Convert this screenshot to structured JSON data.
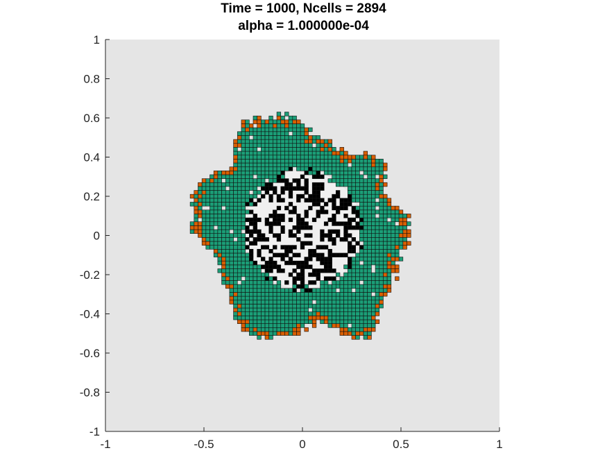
{
  "chart_data": {
    "type": "scatter",
    "title_lines": [
      "Time = 1000, Ncells = 2894",
      "alpha = 1.000000e-04"
    ],
    "xlabel": "",
    "ylabel": "",
    "xlim": [
      -1,
      1
    ],
    "ylim": [
      -1,
      1
    ],
    "xticks": [
      -1,
      -0.5,
      0,
      0.5,
      1
    ],
    "xtick_labels": [
      "-1",
      "-0.5",
      "0",
      "0.5",
      "1"
    ],
    "yticks": [
      1,
      0.8,
      0.6,
      0.4,
      0.2,
      0,
      -0.2,
      -0.4,
      -0.6,
      -0.8,
      -1
    ],
    "ytick_labels": [
      "1",
      "0.8",
      "0.6",
      "0.4",
      "0.2",
      "0",
      "-0.2",
      "-0.4",
      "-0.6",
      "-0.8",
      "-1"
    ],
    "grid": false,
    "background_color": "#e5e5e5",
    "colors": {
      "interior_cell": "#1b9e77",
      "proliferating_edge_cell": "#d95f02",
      "necrotic_cell": "#000000",
      "cell_edge": "#111111",
      "empty_core": "#f0f0f0"
    },
    "cell_size": 0.02,
    "colony_center": [
      0.0,
      0.05
    ],
    "lobe_boundary": [
      {
        "angle_deg": 0,
        "r": 0.55
      },
      {
        "angle_deg": 20,
        "r": 0.46
      },
      {
        "angle_deg": 40,
        "r": 0.52
      },
      {
        "angle_deg": 60,
        "r": 0.44
      },
      {
        "angle_deg": 80,
        "r": 0.46
      },
      {
        "angle_deg": 100,
        "r": 0.57
      },
      {
        "angle_deg": 120,
        "r": 0.6
      },
      {
        "angle_deg": 140,
        "r": 0.48
      },
      {
        "angle_deg": 160,
        "r": 0.58
      },
      {
        "angle_deg": 180,
        "r": 0.56
      },
      {
        "angle_deg": 200,
        "r": 0.47
      },
      {
        "angle_deg": 220,
        "r": 0.5
      },
      {
        "angle_deg": 240,
        "r": 0.62
      },
      {
        "angle_deg": 260,
        "r": 0.58
      },
      {
        "angle_deg": 280,
        "r": 0.5
      },
      {
        "angle_deg": 300,
        "r": 0.66
      },
      {
        "angle_deg": 320,
        "r": 0.56
      },
      {
        "angle_deg": 340,
        "r": 0.52
      }
    ],
    "necrotic_core_center": [
      0.0,
      0.03
    ],
    "necrotic_core_radius": 0.3
  }
}
